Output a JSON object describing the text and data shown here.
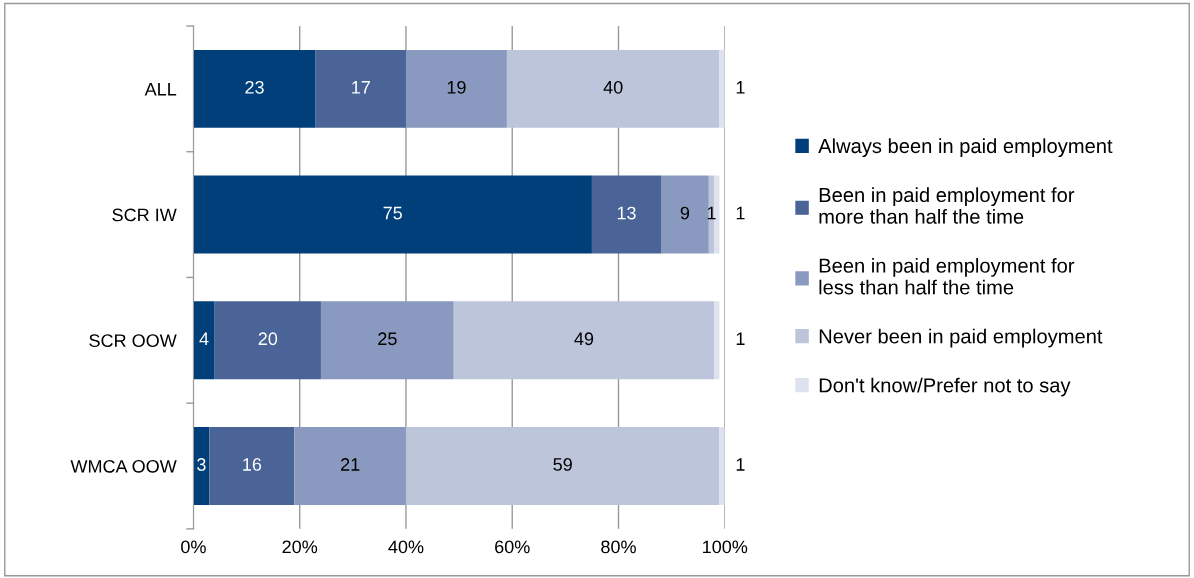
{
  "chart_data": {
    "type": "bar",
    "orientation": "horizontal",
    "stacked": true,
    "data_labels": true,
    "grid": "x",
    "legend": "right",
    "categories": [
      "ALL",
      "SCR IW",
      "SCR OOW",
      "WMCA OOW"
    ],
    "series": [
      {
        "name": "Always been in paid employment",
        "color": "#003f7a",
        "values": [
          23,
          75,
          4,
          3
        ]
      },
      {
        "name": "Been in paid employment for more than half the time",
        "color": "#4a6498",
        "values": [
          17,
          13,
          20,
          16
        ]
      },
      {
        "name": "Been in paid employment for less than half the time",
        "color": "#8a99bf",
        "values": [
          19,
          9,
          25,
          21
        ]
      },
      {
        "name": "Never been in paid employment",
        "color": "#bcc5da",
        "values": [
          40,
          1,
          49,
          59
        ]
      },
      {
        "name": "Don't know/Prefer not to say",
        "color": "#dde2ee",
        "values": [
          1,
          1,
          1,
          1
        ]
      }
    ],
    "xlim": [
      0,
      100
    ],
    "xticks": [
      {
        "value": 0,
        "label": "0%"
      },
      {
        "value": 20,
        "label": "20%"
      },
      {
        "value": 40,
        "label": "40%"
      },
      {
        "value": 60,
        "label": "60%"
      },
      {
        "value": 80,
        "label": "80%"
      },
      {
        "value": 100,
        "label": "100%"
      }
    ]
  }
}
